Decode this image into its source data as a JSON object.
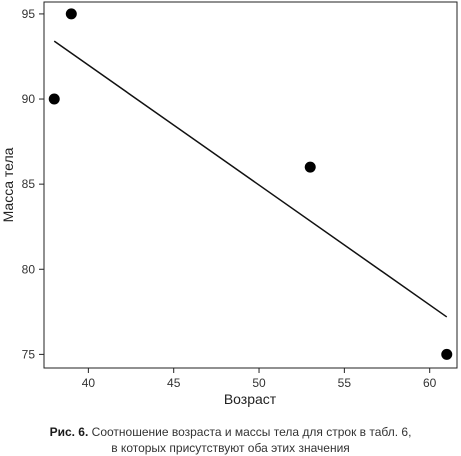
{
  "chart_data": {
    "type": "scatter",
    "xlabel": "Возраст",
    "ylabel": "Масса тела",
    "xlim": [
      37.4,
      61.6
    ],
    "ylim": [
      74.2,
      95.7
    ],
    "x_ticks": [
      40,
      45,
      50,
      55,
      60
    ],
    "y_ticks": [
      75,
      80,
      85,
      90,
      95
    ],
    "x_tick_labels": [
      "40",
      "45",
      "50",
      "55",
      "60"
    ],
    "y_tick_labels": [
      "75",
      "80",
      "85",
      "90",
      "95"
    ],
    "grid": false,
    "points": [
      {
        "x": 38,
        "y": 90
      },
      {
        "x": 39,
        "y": 95
      },
      {
        "x": 53,
        "y": 86
      },
      {
        "x": 61,
        "y": 75
      }
    ],
    "trendline": {
      "x": [
        38,
        61
      ],
      "y": [
        93.4,
        77.2
      ]
    }
  },
  "caption": {
    "label": "Рис. 6.",
    "line1": " Соотношение возраста и массы тела для строк в табл. 6,",
    "line2": "в которых присутствуют оба этих значения"
  }
}
